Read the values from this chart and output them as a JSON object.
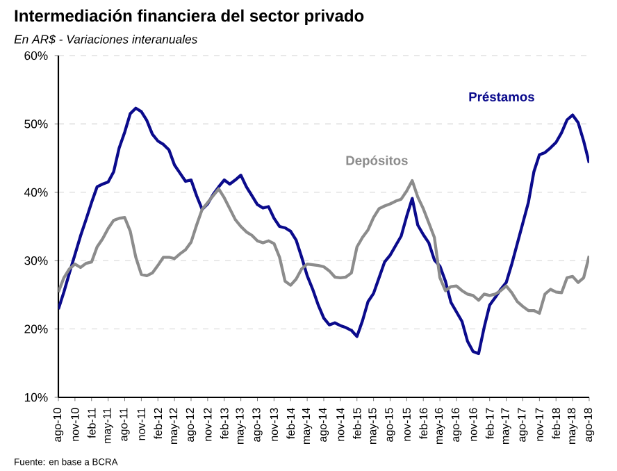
{
  "chart_data": {
    "type": "line",
    "title": "Intermediación financiera del sector privado",
    "subtitle": "En AR$ - Variaciones interanuales",
    "annotations": [
      "Fuente: en base a BCRA"
    ],
    "categories": [
      "ago-10",
      null,
      null,
      "nov-10",
      null,
      null,
      "feb-11",
      null,
      null,
      "may-11",
      null,
      null,
      "ago-11",
      null,
      null,
      "nov-11",
      null,
      null,
      "feb-12",
      null,
      null,
      "may-12",
      null,
      null,
      "ago-12",
      null,
      null,
      "nov-12",
      null,
      null,
      "feb-13",
      null,
      null,
      "may-13",
      null,
      null,
      "ago-13",
      null,
      null,
      "nov-13",
      null,
      null,
      "feb-14",
      null,
      null,
      "may-14",
      null,
      null,
      "ago-14",
      null,
      null,
      "nov-14",
      null,
      null,
      "feb-15",
      null,
      null,
      "may-15",
      null,
      null,
      "ago-15",
      null,
      null,
      "nov-15",
      null,
      null,
      "feb-16",
      null,
      null,
      "may-16",
      null,
      null,
      "ago-16",
      null,
      null,
      "nov-16",
      null,
      null,
      "feb-17",
      null,
      null,
      "may-17",
      null,
      null,
      "ago-17",
      null,
      null,
      "nov-17",
      null,
      null,
      "feb-18",
      null,
      null,
      "may-18",
      null,
      null,
      "ago-18"
    ],
    "series": [
      {
        "name": "Préstamos",
        "color": "#0b0b8c",
        "values": [
          22.9,
          25.4,
          28.2,
          30.9,
          33.6,
          36,
          38.5,
          40.8,
          41.2,
          41.5,
          43,
          46.5,
          48.8,
          51.5,
          52.3,
          51.8,
          50.5,
          48.5,
          47.5,
          47,
          46.2,
          44,
          42.8,
          41.6,
          41.8,
          39.5,
          37.5,
          38.3,
          39.7,
          40.8,
          41.8,
          41.2,
          41.8,
          42.5,
          40.8,
          39.5,
          38.2,
          37.7,
          37.9,
          36.2,
          35,
          34.8,
          34.3,
          33,
          30.5,
          27.8,
          25.8,
          23.5,
          21.6,
          20.6,
          20.9,
          20.5,
          20.2,
          19.8,
          18.9,
          21.2,
          24,
          25.2,
          27.5,
          29.8,
          30.8,
          32.2,
          33.6,
          36.5,
          39.1,
          35.2,
          33.8,
          32.6,
          30.1,
          29.2,
          27,
          23.9,
          22.5,
          21.1,
          18.2,
          16.7,
          16.4,
          20.2,
          23.5,
          24.6,
          25.8,
          26.8,
          29.5,
          32.5,
          35.5,
          38.5,
          43,
          45.5,
          45.8,
          46.5,
          47.3,
          48.7,
          50.6,
          51.3,
          50.2,
          47.5,
          44.3
        ]
      },
      {
        "name": "Depósitos",
        "color": "#8c8c8c",
        "values": [
          25.4,
          27.5,
          28.8,
          29.5,
          29,
          29.6,
          29.8,
          32,
          33.2,
          34.7,
          35.9,
          36.2,
          36.3,
          34.3,
          30.5,
          28,
          27.8,
          28.2,
          29.3,
          30.5,
          30.5,
          30.3,
          31,
          31.6,
          32.7,
          35.2,
          37.5,
          38.5,
          39.5,
          40.5,
          39.2,
          37.6,
          36,
          35,
          34.2,
          33.7,
          32.9,
          32.6,
          32.9,
          32.5,
          30.5,
          27,
          26.4,
          27.3,
          28.8,
          29.5,
          29.4,
          29.3,
          29.1,
          28.5,
          27.6,
          27.5,
          27.6,
          28.2,
          32,
          33.4,
          34.5,
          36.3,
          37.6,
          38,
          38.3,
          38.7,
          39,
          40.2,
          41.7,
          39.3,
          37.6,
          35.5,
          33.4,
          27.5,
          25.6,
          26.2,
          26.3,
          25.6,
          25.1,
          24.9,
          24.2,
          25.1,
          24.9,
          25.1,
          25.6,
          26.3,
          25.3,
          24,
          23.3,
          22.7,
          22.7,
          22.3,
          25.1,
          25.8,
          25.4,
          25.3,
          27.5,
          27.7,
          26.8,
          27.5,
          30.7
        ]
      }
    ],
    "ylim": [
      10,
      60
    ],
    "yticks": [
      {
        "value": 10,
        "label": "10%"
      },
      {
        "value": 20,
        "label": "20%"
      },
      {
        "value": 30,
        "label": "30%"
      },
      {
        "value": 40,
        "label": "40%"
      },
      {
        "value": 50,
        "label": "50%"
      },
      {
        "value": 60,
        "label": "60%"
      }
    ],
    "grid": "y",
    "legend": false,
    "line_style": "solid",
    "marker": "none"
  }
}
